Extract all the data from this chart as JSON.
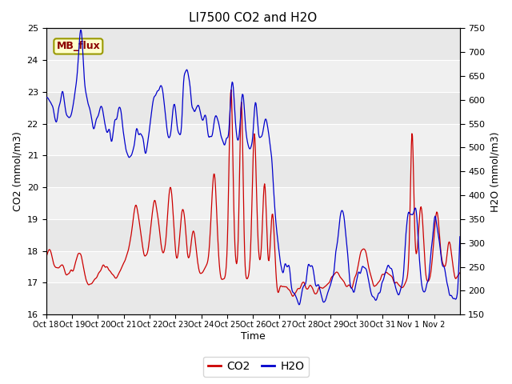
{
  "title": "LI7500 CO2 and H2O",
  "xlabel": "Time",
  "ylabel_left": "CO2 (mmol/m3)",
  "ylabel_right": "H2O (mmol/m3)",
  "co2_ylim": [
    16.0,
    25.0
  ],
  "h2o_ylim": [
    150,
    750
  ],
  "co2_yticks": [
    16.0,
    17.0,
    18.0,
    19.0,
    20.0,
    21.0,
    22.0,
    23.0,
    24.0,
    25.0
  ],
  "h2o_yticks": [
    150,
    200,
    250,
    300,
    350,
    400,
    450,
    500,
    550,
    600,
    650,
    700,
    750
  ],
  "xtick_labels": [
    "Oct 18",
    "Oct 19",
    "Oct 20",
    "Oct 21",
    "Oct 22",
    "Oct 23",
    "Oct 24",
    "Oct 25",
    "Oct 26",
    "Oct 27",
    "Oct 28",
    "Oct 29",
    "Oct 30",
    "Oct 31",
    "Nov 1",
    "Nov 2"
  ],
  "co2_color": "#cc0000",
  "h2o_color": "#0000cc",
  "background_color": "#ffffff",
  "plot_bg_color": "#e8e8e8",
  "plot_bg_light": "#f0f0f0",
  "annotation_text": "MB_flux",
  "annotation_bg": "#ffffcc",
  "annotation_border": "#999900",
  "legend_co2": "CO2",
  "legend_h2o": "H2O",
  "title_fontsize": 11,
  "axis_fontsize": 9,
  "tick_fontsize": 8
}
